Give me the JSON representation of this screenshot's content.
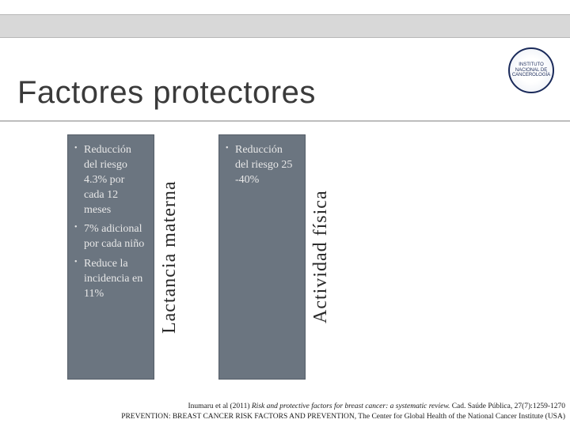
{
  "header": {
    "title": "Factores protectores",
    "logo_text": "INSTITUTO NACIONAL DE CANCEROLOGÍA"
  },
  "columns": {
    "left": {
      "label": "Lactancia materna",
      "items": [
        "Reducción del riesgo 4.3% por cada 12 meses",
        "7% adicional por cada niño",
        "Reduce la incidencia en 11%"
      ]
    },
    "right": {
      "label": "Actividad física",
      "items": [
        "Reducción del riesgo 25 -40%"
      ]
    }
  },
  "citation": {
    "line1_prefix": "Inumaru et al (2011) ",
    "line1_ital": "Risk and protective factors for breast cancer: a systematic review.",
    "line1_suffix": " Cad. Saúde Pública, 27(7):1259-1270",
    "line2": "PREVENTION: BREAST CANCER RISK FACTORS AND PREVENTION, The Center for Global Health of the National Cancer Institute (USA)"
  },
  "colors": {
    "box_bg": "#6b7580",
    "box_text": "#e8e8e8",
    "title_color": "#3a3a3a",
    "bar_bg": "#d8d8d8"
  }
}
